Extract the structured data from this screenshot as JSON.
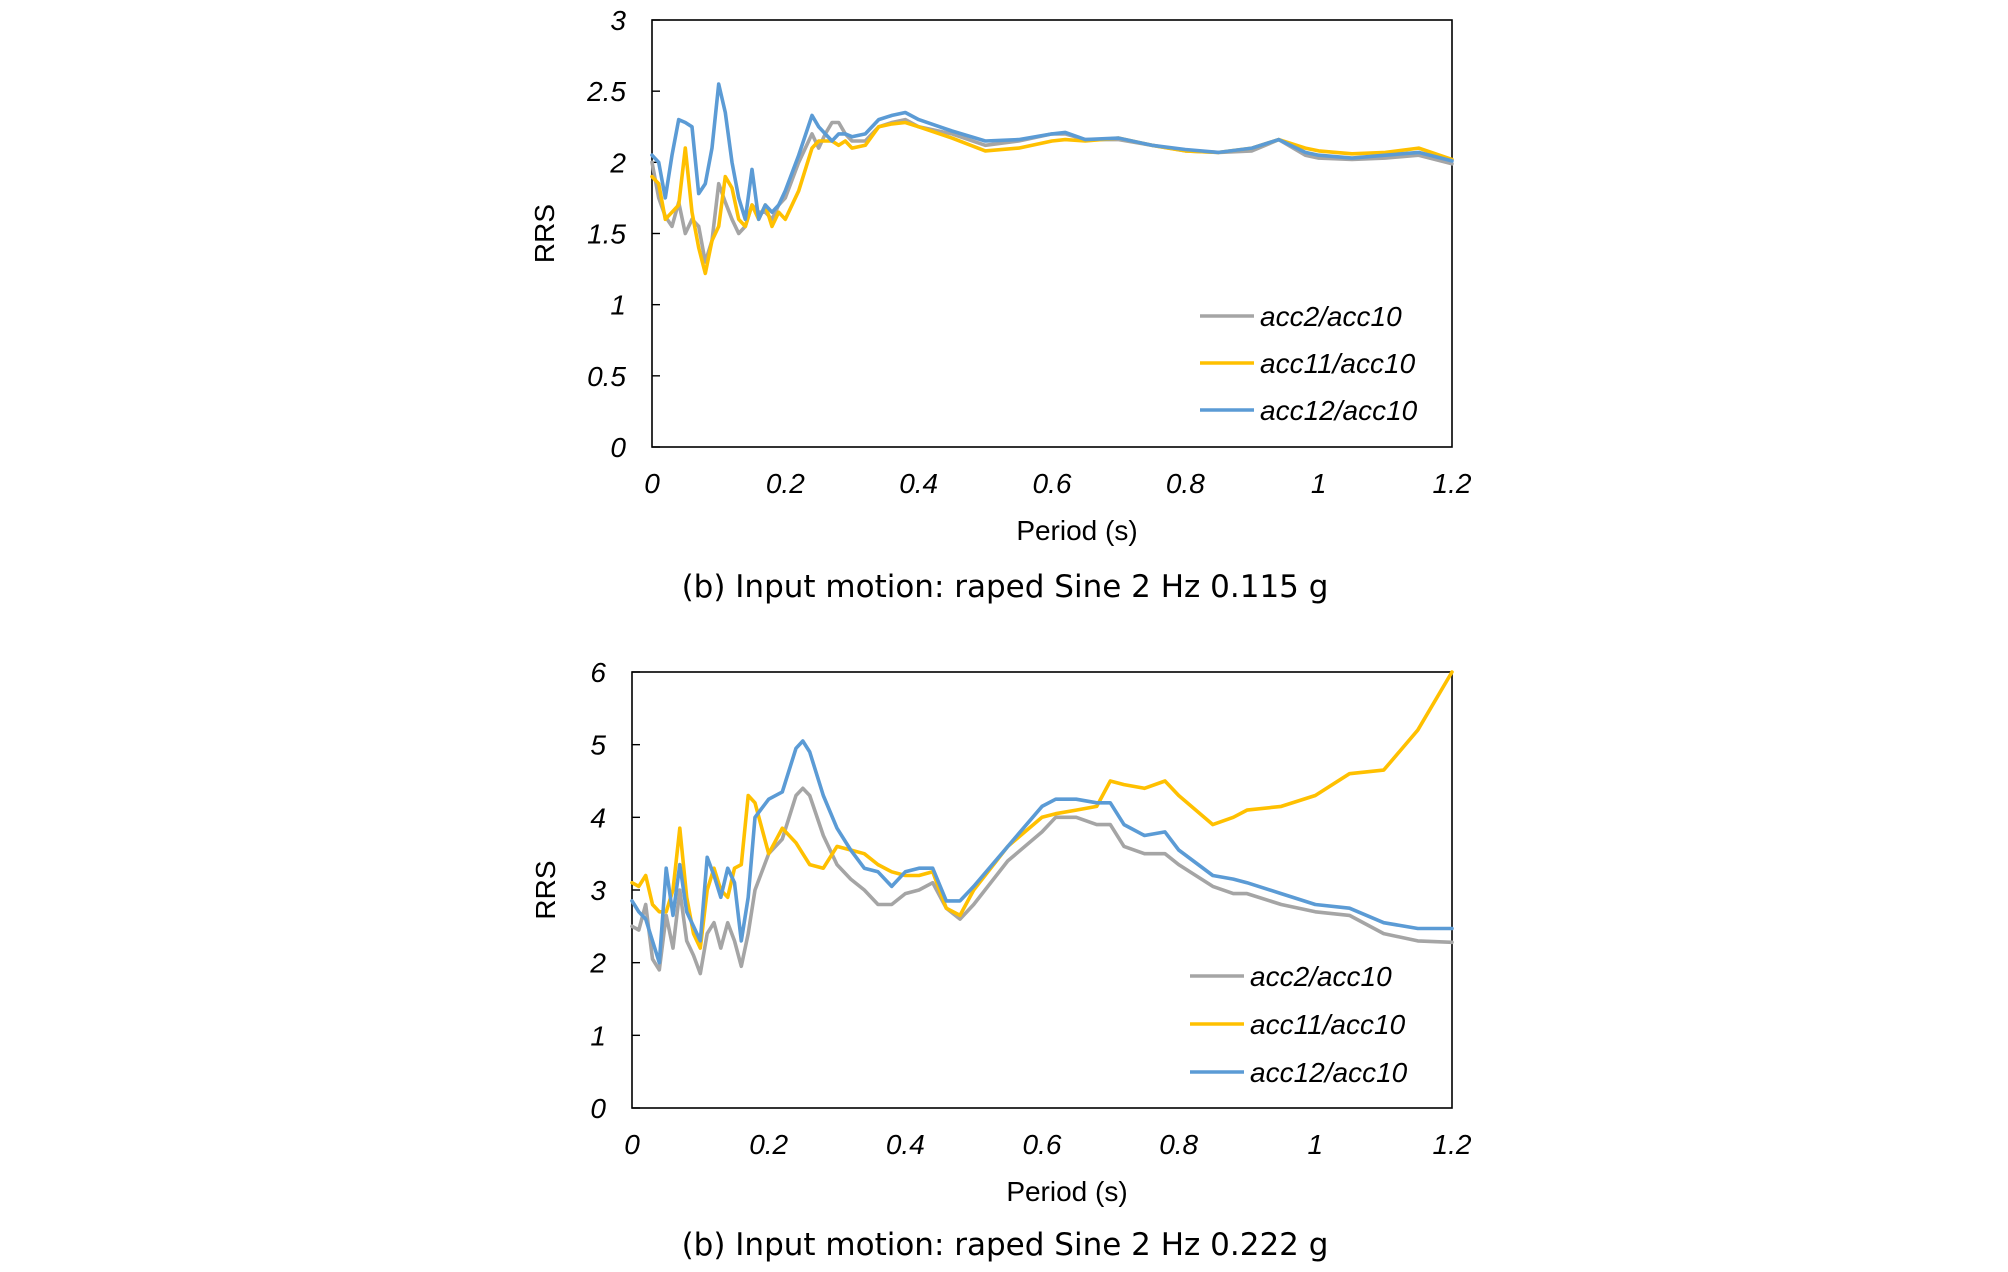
{
  "chart_data": [
    {
      "type": "line",
      "caption": "(b) Input motion: raped Sine 2 Hz 0.115 g",
      "xlabel": "Period (s)",
      "ylabel": "RRS",
      "xlim": [
        0,
        1.2
      ],
      "ylim": [
        0,
        3
      ],
      "xticks": [
        0,
        0.2,
        0.4,
        0.6,
        0.8,
        1,
        1.2
      ],
      "yticks": [
        0,
        0.5,
        1,
        1.5,
        2,
        2.5,
        3
      ],
      "grid": false,
      "legend_position": "bottom-right",
      "series": [
        {
          "name": "acc2/acc10",
          "color": "#A5A5A5",
          "x": [
            0,
            0.01,
            0.02,
            0.03,
            0.04,
            0.05,
            0.06,
            0.07,
            0.08,
            0.09,
            0.1,
            0.11,
            0.12,
            0.13,
            0.14,
            0.15,
            0.16,
            0.17,
            0.18,
            0.19,
            0.2,
            0.22,
            0.24,
            0.25,
            0.26,
            0.27,
            0.28,
            0.29,
            0.3,
            0.32,
            0.34,
            0.36,
            0.38,
            0.4,
            0.45,
            0.5,
            0.55,
            0.6,
            0.62,
            0.65,
            0.7,
            0.75,
            0.8,
            0.85,
            0.9,
            0.94,
            0.98,
            1.0,
            1.05,
            1.1,
            1.15,
            1.2
          ],
          "y": [
            2.0,
            1.75,
            1.62,
            1.55,
            1.72,
            1.5,
            1.6,
            1.55,
            1.3,
            1.45,
            1.85,
            1.72,
            1.6,
            1.5,
            1.55,
            1.7,
            1.65,
            1.65,
            1.6,
            1.7,
            1.75,
            2.0,
            2.2,
            2.1,
            2.2,
            2.28,
            2.28,
            2.2,
            2.15,
            2.15,
            2.25,
            2.28,
            2.3,
            2.25,
            2.2,
            2.12,
            2.15,
            2.2,
            2.2,
            2.16,
            2.16,
            2.12,
            2.08,
            2.07,
            2.08,
            2.16,
            2.05,
            2.03,
            2.02,
            2.03,
            2.05,
            1.99
          ]
        },
        {
          "name": "acc11/acc10",
          "color": "#FFC000",
          "x": [
            0,
            0.01,
            0.02,
            0.03,
            0.04,
            0.05,
            0.06,
            0.07,
            0.08,
            0.09,
            0.1,
            0.11,
            0.12,
            0.13,
            0.14,
            0.15,
            0.16,
            0.17,
            0.18,
            0.19,
            0.2,
            0.22,
            0.24,
            0.25,
            0.26,
            0.27,
            0.28,
            0.29,
            0.3,
            0.32,
            0.34,
            0.36,
            0.38,
            0.4,
            0.45,
            0.5,
            0.55,
            0.6,
            0.62,
            0.65,
            0.7,
            0.75,
            0.8,
            0.85,
            0.9,
            0.94,
            0.98,
            1.0,
            1.05,
            1.1,
            1.15,
            1.2
          ],
          "y": [
            1.9,
            1.85,
            1.6,
            1.65,
            1.7,
            2.1,
            1.65,
            1.4,
            1.22,
            1.45,
            1.55,
            1.9,
            1.82,
            1.6,
            1.55,
            1.7,
            1.6,
            1.7,
            1.55,
            1.65,
            1.6,
            1.8,
            2.1,
            2.15,
            2.15,
            2.15,
            2.12,
            2.15,
            2.1,
            2.12,
            2.25,
            2.27,
            2.28,
            2.25,
            2.17,
            2.08,
            2.1,
            2.15,
            2.16,
            2.15,
            2.17,
            2.12,
            2.08,
            2.07,
            2.1,
            2.16,
            2.1,
            2.08,
            2.06,
            2.07,
            2.1,
            2.02
          ]
        },
        {
          "name": "acc12/acc10",
          "color": "#5B9BD5",
          "x": [
            0,
            0.01,
            0.02,
            0.03,
            0.04,
            0.05,
            0.06,
            0.07,
            0.08,
            0.09,
            0.1,
            0.11,
            0.12,
            0.13,
            0.14,
            0.15,
            0.16,
            0.17,
            0.18,
            0.19,
            0.2,
            0.22,
            0.24,
            0.25,
            0.26,
            0.27,
            0.28,
            0.29,
            0.3,
            0.32,
            0.34,
            0.36,
            0.38,
            0.4,
            0.45,
            0.5,
            0.55,
            0.6,
            0.62,
            0.65,
            0.7,
            0.75,
            0.8,
            0.85,
            0.9,
            0.94,
            0.98,
            1.0,
            1.05,
            1.1,
            1.15,
            1.2
          ],
          "y": [
            2.05,
            2.0,
            1.75,
            2.05,
            2.3,
            2.28,
            2.25,
            1.78,
            1.85,
            2.1,
            2.55,
            2.35,
            2.0,
            1.75,
            1.6,
            1.95,
            1.6,
            1.7,
            1.65,
            1.7,
            1.8,
            2.05,
            2.33,
            2.25,
            2.2,
            2.15,
            2.2,
            2.2,
            2.18,
            2.2,
            2.3,
            2.33,
            2.35,
            2.3,
            2.22,
            2.15,
            2.16,
            2.2,
            2.21,
            2.16,
            2.17,
            2.12,
            2.09,
            2.07,
            2.1,
            2.16,
            2.07,
            2.05,
            2.03,
            2.05,
            2.07,
            2.01
          ]
        }
      ]
    },
    {
      "type": "line",
      "caption": "(b) Input motion: raped Sine 2 Hz 0.222 g",
      "xlabel": "Period (s)",
      "ylabel": "RRS",
      "xlim": [
        0,
        1.2
      ],
      "ylim": [
        0,
        6
      ],
      "xticks": [
        0,
        0.2,
        0.4,
        0.6,
        0.8,
        1,
        1.2
      ],
      "yticks": [
        0,
        1,
        2,
        3,
        4,
        5,
        6
      ],
      "grid": false,
      "legend_position": "bottom-right",
      "series": [
        {
          "name": "acc2/acc10",
          "color": "#A5A5A5",
          "x": [
            0,
            0.01,
            0.02,
            0.03,
            0.04,
            0.05,
            0.06,
            0.07,
            0.08,
            0.09,
            0.1,
            0.11,
            0.12,
            0.13,
            0.14,
            0.15,
            0.16,
            0.17,
            0.18,
            0.2,
            0.22,
            0.24,
            0.25,
            0.26,
            0.28,
            0.3,
            0.32,
            0.34,
            0.36,
            0.38,
            0.4,
            0.42,
            0.44,
            0.46,
            0.48,
            0.5,
            0.55,
            0.6,
            0.62,
            0.65,
            0.68,
            0.7,
            0.72,
            0.75,
            0.78,
            0.8,
            0.85,
            0.88,
            0.9,
            0.95,
            1.0,
            1.05,
            1.1,
            1.15,
            1.2
          ],
          "y": [
            2.5,
            2.45,
            2.8,
            2.05,
            1.9,
            2.65,
            2.2,
            3.0,
            2.3,
            2.1,
            1.85,
            2.4,
            2.55,
            2.2,
            2.55,
            2.3,
            1.95,
            2.4,
            3.0,
            3.5,
            3.7,
            4.3,
            4.4,
            4.3,
            3.75,
            3.35,
            3.15,
            3.0,
            2.8,
            2.8,
            2.95,
            3.0,
            3.1,
            2.75,
            2.6,
            2.8,
            3.4,
            3.8,
            4.0,
            4.0,
            3.9,
            3.9,
            3.6,
            3.5,
            3.5,
            3.35,
            3.05,
            2.95,
            2.95,
            2.8,
            2.7,
            2.65,
            2.4,
            2.3,
            2.28
          ]
        },
        {
          "name": "acc11/acc10",
          "color": "#FFC000",
          "x": [
            0,
            0.01,
            0.02,
            0.03,
            0.04,
            0.05,
            0.06,
            0.07,
            0.08,
            0.09,
            0.1,
            0.11,
            0.12,
            0.13,
            0.14,
            0.15,
            0.16,
            0.17,
            0.18,
            0.2,
            0.22,
            0.24,
            0.25,
            0.26,
            0.28,
            0.3,
            0.32,
            0.34,
            0.36,
            0.38,
            0.4,
            0.42,
            0.44,
            0.46,
            0.48,
            0.5,
            0.55,
            0.6,
            0.62,
            0.65,
            0.68,
            0.7,
            0.72,
            0.75,
            0.78,
            0.8,
            0.85,
            0.88,
            0.9,
            0.95,
            1.0,
            1.05,
            1.1,
            1.15,
            1.2
          ],
          "y": [
            3.1,
            3.05,
            3.2,
            2.8,
            2.7,
            2.7,
            3.0,
            3.85,
            2.9,
            2.4,
            2.2,
            3.0,
            3.3,
            3.0,
            2.9,
            3.3,
            3.35,
            4.3,
            4.2,
            3.5,
            3.85,
            3.65,
            3.5,
            3.35,
            3.3,
            3.6,
            3.55,
            3.5,
            3.35,
            3.25,
            3.2,
            3.2,
            3.25,
            2.75,
            2.65,
            3.0,
            3.6,
            4.0,
            4.05,
            4.1,
            4.15,
            4.5,
            4.45,
            4.4,
            4.5,
            4.3,
            3.9,
            4.0,
            4.1,
            4.15,
            4.3,
            4.6,
            4.65,
            5.2,
            6.0
          ]
        },
        {
          "name": "acc12/acc10",
          "color": "#5B9BD5",
          "x": [
            0,
            0.01,
            0.02,
            0.03,
            0.04,
            0.05,
            0.06,
            0.07,
            0.08,
            0.09,
            0.1,
            0.11,
            0.12,
            0.13,
            0.14,
            0.15,
            0.16,
            0.17,
            0.18,
            0.2,
            0.22,
            0.24,
            0.25,
            0.26,
            0.28,
            0.3,
            0.32,
            0.34,
            0.36,
            0.38,
            0.4,
            0.42,
            0.44,
            0.46,
            0.48,
            0.5,
            0.55,
            0.6,
            0.62,
            0.65,
            0.68,
            0.7,
            0.72,
            0.75,
            0.78,
            0.8,
            0.85,
            0.88,
            0.9,
            0.95,
            1.0,
            1.05,
            1.1,
            1.15,
            1.2
          ],
          "y": [
            2.85,
            2.7,
            2.6,
            2.3,
            2.0,
            3.3,
            2.65,
            3.35,
            2.7,
            2.5,
            2.3,
            3.45,
            3.2,
            2.9,
            3.3,
            3.1,
            2.3,
            2.9,
            4.0,
            4.25,
            4.35,
            4.95,
            5.05,
            4.9,
            4.3,
            3.85,
            3.55,
            3.3,
            3.25,
            3.05,
            3.25,
            3.3,
            3.3,
            2.85,
            2.85,
            3.05,
            3.6,
            4.15,
            4.25,
            4.25,
            4.2,
            4.2,
            3.9,
            3.75,
            3.8,
            3.55,
            3.2,
            3.15,
            3.1,
            2.95,
            2.8,
            2.75,
            2.55,
            2.47,
            2.47
          ]
        }
      ]
    }
  ]
}
